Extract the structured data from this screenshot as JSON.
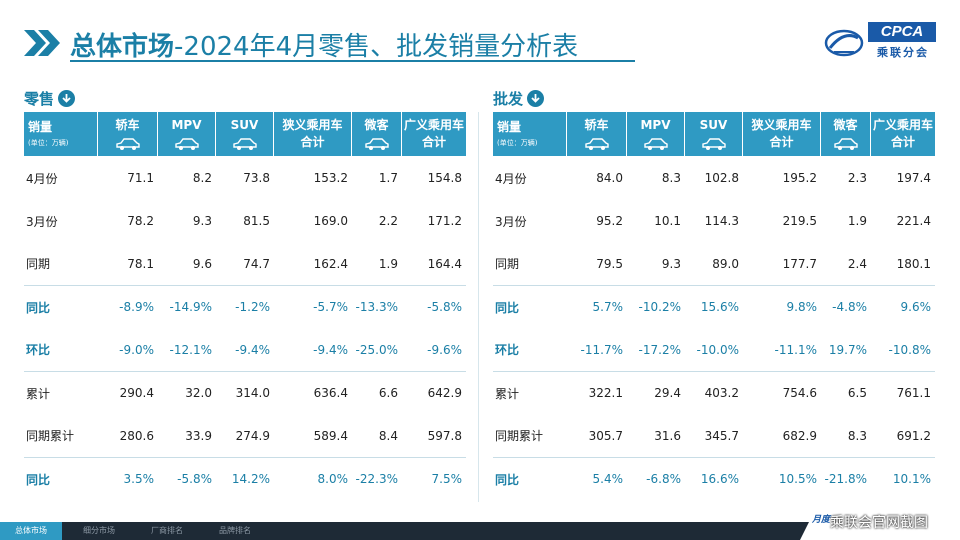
{
  "header": {
    "title_bold": "总体市场",
    "title_rest": "-2024年4月零售、批发销量分析表",
    "logo": {
      "brand": "CPCA",
      "cn": "乘联分会"
    },
    "accent_color": "#1b7fa6",
    "table_header_color": "#2f9ac3"
  },
  "retail": {
    "label": "零售",
    "icon": "arrow-down-circle-icon",
    "columns": {
      "first": "销量",
      "first_sub": "(单位：万辆)",
      "sedan": "轿车",
      "mpv": "MPV",
      "suv": "SUV",
      "narrow_l1": "狭义乘用车",
      "narrow_l2": "合计",
      "mini": "微客",
      "broad_l1": "广义乘用车",
      "broad_l2": "合计"
    },
    "rows": [
      {
        "label": "4月份",
        "type": "value",
        "values": [
          "71.1",
          "8.2",
          "73.8",
          "153.2",
          "1.7",
          "154.8"
        ]
      },
      {
        "label": "3月份",
        "type": "value",
        "values": [
          "78.2",
          "9.3",
          "81.5",
          "169.0",
          "2.2",
          "171.2"
        ]
      },
      {
        "label": "同期",
        "type": "value",
        "values": [
          "78.1",
          "9.6",
          "74.7",
          "162.4",
          "1.9",
          "164.4"
        ]
      },
      {
        "label": "同比",
        "type": "pct",
        "values": [
          "-8.9%",
          "-14.9%",
          "-1.2%",
          "-5.7%",
          "-13.3%",
          "-5.8%"
        ]
      },
      {
        "label": "环比",
        "type": "pct",
        "values": [
          "-9.0%",
          "-12.1%",
          "-9.4%",
          "-9.4%",
          "-25.0%",
          "-9.6%"
        ]
      },
      {
        "label": "累计",
        "type": "value",
        "values": [
          "290.4",
          "32.0",
          "314.0",
          "636.4",
          "6.6",
          "642.9"
        ]
      },
      {
        "label": "同期累计",
        "type": "value",
        "values": [
          "280.6",
          "33.9",
          "274.9",
          "589.4",
          "8.4",
          "597.8"
        ]
      },
      {
        "label": "同比",
        "type": "pct",
        "values": [
          "3.5%",
          "-5.8%",
          "14.2%",
          "8.0%",
          "-22.3%",
          "7.5%"
        ]
      }
    ]
  },
  "wholesale": {
    "label": "批发",
    "icon": "arrow-down-circle-icon",
    "columns": {
      "first": "销量",
      "first_sub": "(单位：万辆)",
      "sedan": "轿车",
      "mpv": "MPV",
      "suv": "SUV",
      "narrow_l1": "狭义乘用车",
      "narrow_l2": "合计",
      "mini": "微客",
      "broad_l1": "广义乘用车",
      "broad_l2": "合计"
    },
    "rows": [
      {
        "label": "4月份",
        "type": "value",
        "values": [
          "84.0",
          "8.3",
          "102.8",
          "195.2",
          "2.3",
          "197.4"
        ]
      },
      {
        "label": "3月份",
        "type": "value",
        "values": [
          "95.2",
          "10.1",
          "114.3",
          "219.5",
          "1.9",
          "221.4"
        ]
      },
      {
        "label": "同期",
        "type": "value",
        "values": [
          "79.5",
          "9.3",
          "89.0",
          "177.7",
          "2.4",
          "180.1"
        ]
      },
      {
        "label": "同比",
        "type": "pct",
        "values": [
          "5.7%",
          "-10.2%",
          "15.6%",
          "9.8%",
          "-4.8%",
          "9.6%"
        ]
      },
      {
        "label": "环比",
        "type": "pct",
        "values": [
          "-11.7%",
          "-17.2%",
          "-10.0%",
          "-11.1%",
          "19.7%",
          "-10.8%"
        ]
      },
      {
        "label": "累计",
        "type": "value",
        "values": [
          "322.1",
          "29.4",
          "403.2",
          "754.6",
          "6.5",
          "761.1"
        ]
      },
      {
        "label": "同期累计",
        "type": "value",
        "values": [
          "305.7",
          "31.6",
          "345.7",
          "682.9",
          "8.3",
          "691.2"
        ]
      },
      {
        "label": "同比",
        "type": "pct",
        "values": [
          "5.4%",
          "-6.8%",
          "16.6%",
          "10.5%",
          "-21.8%",
          "10.1%"
        ]
      }
    ]
  },
  "footer": {
    "tabs": [
      "总体市场",
      "细分市场",
      "厂商排名",
      "品牌排名"
    ],
    "active_tab": 0,
    "watermark": "乘联会官网截图",
    "corner_text": "月度"
  }
}
